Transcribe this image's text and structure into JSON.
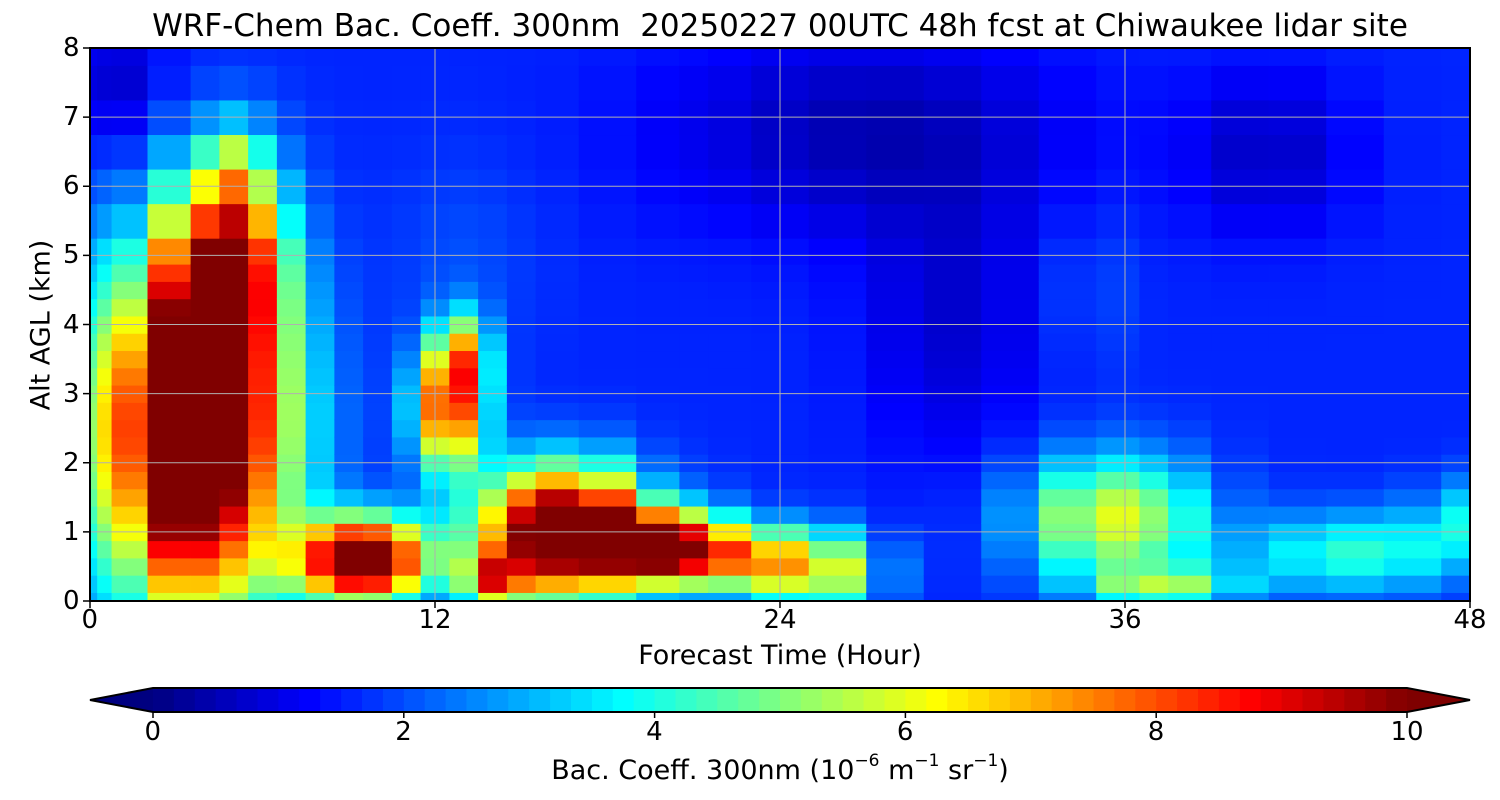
{
  "chart_data": {
    "type": "heatmap",
    "title": "WRF-Chem Bac. Coeff. 300nm  20250227 00UTC 48h fcst at Chiwaukee lidar site",
    "xlabel": "Forecast Time (Hour)",
    "ylabel": "Alt AGL (km)",
    "xlim": [
      0,
      48
    ],
    "ylim": [
      0,
      8
    ],
    "xticks": [
      "0",
      "12",
      "24",
      "36",
      "48"
    ],
    "yticks": [
      "0",
      "1",
      "2",
      "3",
      "4",
      "5",
      "6",
      "7",
      "8"
    ],
    "grid": true,
    "colormap": "jet",
    "colorbar": {
      "label_main": "Bac. Coeff. 300nm  (10",
      "label_exp1": "−6",
      "label_mid": " m",
      "label_exp2": "−1",
      "label_mid2": " sr",
      "label_exp3": "−1",
      "label_end": ")",
      "range": [
        0,
        10
      ],
      "ticks": [
        "0",
        "2",
        "4",
        "6",
        "8",
        "10"
      ],
      "extend": "both",
      "under_color": "#000080",
      "over_color": "#7f0000"
    },
    "x": [
      0,
      0.5,
      1,
      3,
      4,
      5,
      6,
      7,
      8,
      9,
      10,
      11,
      12,
      13,
      14,
      15,
      16,
      18,
      20,
      21,
      22,
      24,
      26,
      28,
      30,
      32,
      34,
      36,
      37,
      38,
      40,
      42,
      44,
      46,
      48
    ],
    "y": [
      0,
      0.25,
      0.5,
      0.75,
      1,
      1.25,
      1.5,
      1.75,
      2,
      2.25,
      2.5,
      2.75,
      3,
      3.25,
      3.5,
      3.75,
      4,
      4.25,
      4.5,
      4.75,
      5,
      5.5,
      6,
      6.5,
      7,
      7.5,
      8
    ],
    "features": [
      {
        "kind": "base",
        "value": 1.6
      },
      {
        "kind": "blob",
        "x": 27,
        "y": 6.8,
        "sx": 7,
        "sy": 1.5,
        "amp": -1.1
      },
      {
        "kind": "blob",
        "x": 41,
        "y": 6.5,
        "sx": 3,
        "sy": 1.2,
        "amp": -0.9
      },
      {
        "kind": "blob",
        "x": 30,
        "y": 4.0,
        "sx": 3,
        "sy": 2.0,
        "amp": -0.8
      },
      {
        "kind": "blob",
        "x": 1,
        "y": 7.5,
        "sx": 2,
        "sy": 1.0,
        "amp": -0.9
      },
      {
        "kind": "blob",
        "x": 35,
        "y": 4.5,
        "sx": 1.2,
        "sy": 1.2,
        "amp": 0.6
      },
      {
        "kind": "blob",
        "x": 13,
        "y": 5.0,
        "sx": 2.5,
        "sy": 1.5,
        "amp": 0.4
      },
      {
        "kind": "blob",
        "x": 3.5,
        "y": 2.5,
        "sx": 3.2,
        "sy": 2.5,
        "amp": 12
      },
      {
        "kind": "blob",
        "x": 5.0,
        "y": 5.0,
        "sx": 1.7,
        "sy": 1.4,
        "amp": 6
      },
      {
        "kind": "blob",
        "x": 5.0,
        "y": 6.3,
        "sx": 1.0,
        "sy": 0.6,
        "amp": 1.5
      },
      {
        "kind": "blob",
        "x": 9.5,
        "y": 0.6,
        "sx": 2.2,
        "sy": 0.6,
        "amp": 10
      },
      {
        "kind": "blob",
        "x": 12.5,
        "y": 2.8,
        "sx": 1.2,
        "sy": 0.9,
        "amp": 7
      },
      {
        "kind": "blob",
        "x": 13.0,
        "y": 3.6,
        "sx": 0.9,
        "sy": 0.6,
        "amp": 3.5
      },
      {
        "kind": "blob",
        "x": 16.5,
        "y": 1.0,
        "sx": 2.8,
        "sy": 0.9,
        "amp": 11
      },
      {
        "kind": "blob",
        "x": 20.0,
        "y": 0.8,
        "sx": 2.0,
        "sy": 0.5,
        "amp": 8
      },
      {
        "kind": "blob",
        "x": 23.0,
        "y": 0.6,
        "sx": 2.5,
        "sy": 0.5,
        "amp": 4.5
      },
      {
        "kind": "blob",
        "x": 25.5,
        "y": 0.4,
        "sx": 2.0,
        "sy": 0.6,
        "amp": 3.5
      },
      {
        "kind": "blob",
        "x": 35.5,
        "y": 1.2,
        "sx": 3.0,
        "sy": 0.9,
        "amp": 4.5
      },
      {
        "kind": "blob",
        "x": 37.5,
        "y": 0.2,
        "sx": 2.5,
        "sy": 0.3,
        "amp": 3.0
      },
      {
        "kind": "blob",
        "x": 44.0,
        "y": 0.7,
        "sx": 4.0,
        "sy": 0.6,
        "amp": 2.6
      },
      {
        "kind": "blob",
        "x": 47.5,
        "y": 1.2,
        "sx": 1.2,
        "sy": 0.6,
        "amp": 2.2
      },
      {
        "kind": "blob",
        "x": 14.0,
        "y": 0.3,
        "sx": 1.0,
        "sy": 0.4,
        "amp": 5
      }
    ]
  }
}
